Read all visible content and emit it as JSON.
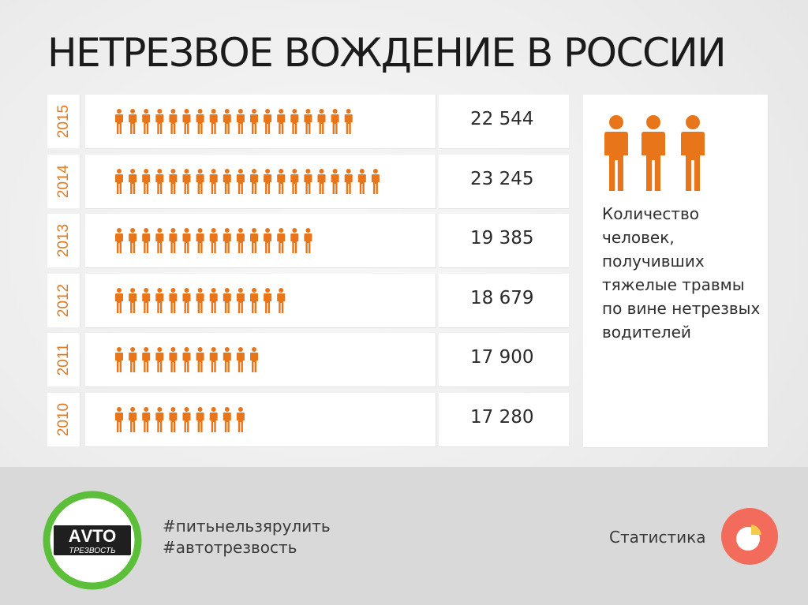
{
  "title": "НЕТРЕЗВОЕ ВОЖДЕНИЕ В РОССИИ",
  "chart_data": {
    "type": "pictogram",
    "categories": [
      "2015",
      "2014",
      "2013",
      "2012",
      "2011",
      "2010"
    ],
    "values": [
      22544,
      23245,
      19385,
      18679,
      17900,
      17280
    ],
    "value_labels": [
      "22 544",
      "23 245",
      "19 385",
      "18 679",
      "17 900",
      "17 280"
    ],
    "icon_counts": [
      18,
      20,
      15,
      13,
      11,
      10
    ],
    "legend_text": "Количество человек, получивших тяжелые травмы по вине нетрезвых водителей",
    "icon_color": "#e8751a"
  },
  "footer": {
    "logo_text_top": "АVТО",
    "logo_text_bottom": "ТРЕЗВОСТЬ",
    "hashtag1": "#питьнельзярулить",
    "hashtag2": "#автотрезвость",
    "section_label": "Статистика",
    "section_icon": "pie-chart-icon",
    "logo_ring_color": "#5cbf3a",
    "logo_badge_color": "#1f1f1f",
    "stat_icon_color": "#f26b5b"
  }
}
